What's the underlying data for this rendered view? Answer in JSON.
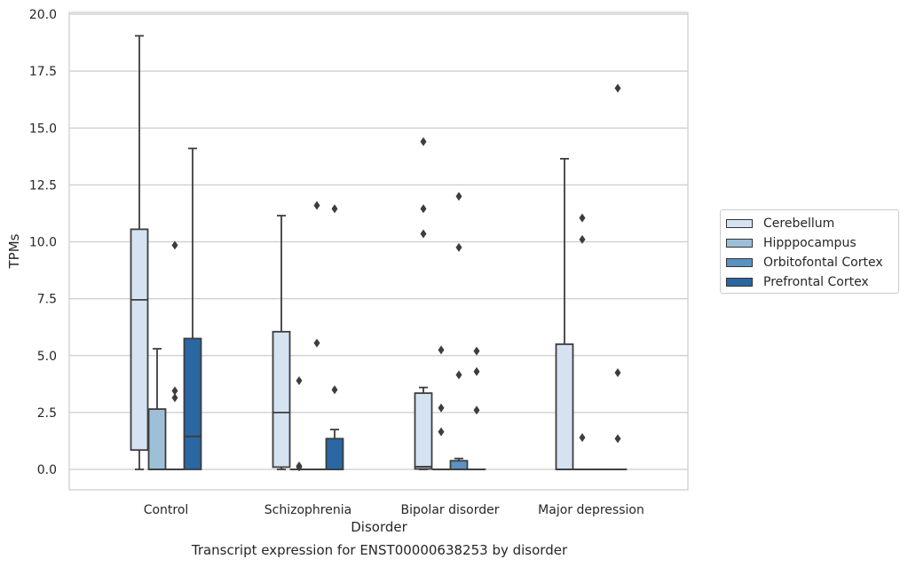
{
  "caption": "Transcript expression for ENST00000638253 by disorder",
  "chart_data": {
    "type": "box",
    "xlabel": "Disorder",
    "ylabel": "TPMs",
    "ylim": [
      -0.9,
      20.1
    ],
    "yticks": [
      0.0,
      2.5,
      5.0,
      7.5,
      10.0,
      12.5,
      15.0,
      17.5,
      20.0
    ],
    "ytick_labels": [
      "0.0",
      "2.5",
      "5.0",
      "7.5",
      "10.0",
      "12.5",
      "15.0",
      "17.5",
      "20.0"
    ],
    "grid": "horizontal",
    "legend_position": "right",
    "categories": [
      "Control",
      "Schizophrenia",
      "Bipolar disorder",
      "Major depression"
    ],
    "series": [
      {
        "name": "Cerebellum",
        "color": "#d4e2f1",
        "boxes": [
          {
            "whislo": 0.0,
            "q1": 0.85,
            "med": 7.45,
            "q3": 10.55,
            "whishi": 19.05,
            "fliers": []
          },
          {
            "whislo": 0.0,
            "q1": 0.1,
            "med": 2.5,
            "q3": 6.05,
            "whishi": 11.15,
            "fliers": []
          },
          {
            "whislo": 0.0,
            "q1": 0.02,
            "med": 0.12,
            "q3": 3.35,
            "whishi": 3.6,
            "fliers": [
              14.4,
              11.45,
              10.35
            ]
          },
          {
            "whislo": 0.0,
            "q1": 0.0,
            "med": 0.0,
            "q3": 5.5,
            "whishi": 13.65,
            "fliers": []
          }
        ]
      },
      {
        "name": "Hipppocampus",
        "color": "#9ebfd8",
        "boxes": [
          {
            "whislo": 0.0,
            "q1": 0.0,
            "med": 0.0,
            "q3": 2.65,
            "whishi": 5.3,
            "fliers": []
          },
          {
            "whislo": 0.0,
            "q1": 0.0,
            "med": 0.0,
            "q3": 0.0,
            "whishi": 0.0,
            "fliers": [
              3.9,
              0.15,
              0.1
            ]
          },
          {
            "whislo": 0.0,
            "q1": 0.0,
            "med": 0.0,
            "q3": 0.0,
            "whishi": 0.0,
            "fliers": [
              5.25,
              2.7,
              1.65
            ]
          },
          {
            "whislo": 0.0,
            "q1": 0.0,
            "med": 0.0,
            "q3": 0.0,
            "whishi": 0.0,
            "fliers": [
              11.05,
              10.1,
              1.4
            ]
          }
        ]
      },
      {
        "name": "Orbitofontal Cortex",
        "color": "#5a93c1",
        "boxes": [
          {
            "whislo": 0.0,
            "q1": 0.0,
            "med": 0.0,
            "q3": 0.0,
            "whishi": 0.0,
            "fliers": [
              9.85,
              3.45,
              3.15
            ]
          },
          {
            "whislo": 0.0,
            "q1": 0.0,
            "med": 0.0,
            "q3": 0.0,
            "whishi": 0.0,
            "fliers": [
              11.6,
              5.55
            ]
          },
          {
            "whislo": 0.0,
            "q1": 0.0,
            "med": 0.0,
            "q3": 0.38,
            "whishi": 0.48,
            "fliers": [
              12.0,
              9.75,
              4.15
            ]
          },
          {
            "whislo": 0.0,
            "q1": 0.0,
            "med": 0.0,
            "q3": 0.0,
            "whishi": 0.0,
            "fliers": []
          }
        ]
      },
      {
        "name": "Prefrontal Cortex",
        "color": "#2a67a3",
        "boxes": [
          {
            "whislo": 0.0,
            "q1": 0.0,
            "med": 1.45,
            "q3": 5.75,
            "whishi": 14.1,
            "fliers": []
          },
          {
            "whislo": 0.0,
            "q1": 0.0,
            "med": 0.0,
            "q3": 1.35,
            "whishi": 1.75,
            "fliers": [
              11.45,
              3.5
            ]
          },
          {
            "whislo": 0.0,
            "q1": 0.0,
            "med": 0.0,
            "q3": 0.0,
            "whishi": 0.0,
            "fliers": [
              5.2,
              4.3,
              2.6
            ]
          },
          {
            "whislo": 0.0,
            "q1": 0.0,
            "med": 0.0,
            "q3": 0.0,
            "whishi": 0.0,
            "fliers": [
              16.75,
              4.25,
              1.35
            ]
          }
        ]
      }
    ]
  }
}
